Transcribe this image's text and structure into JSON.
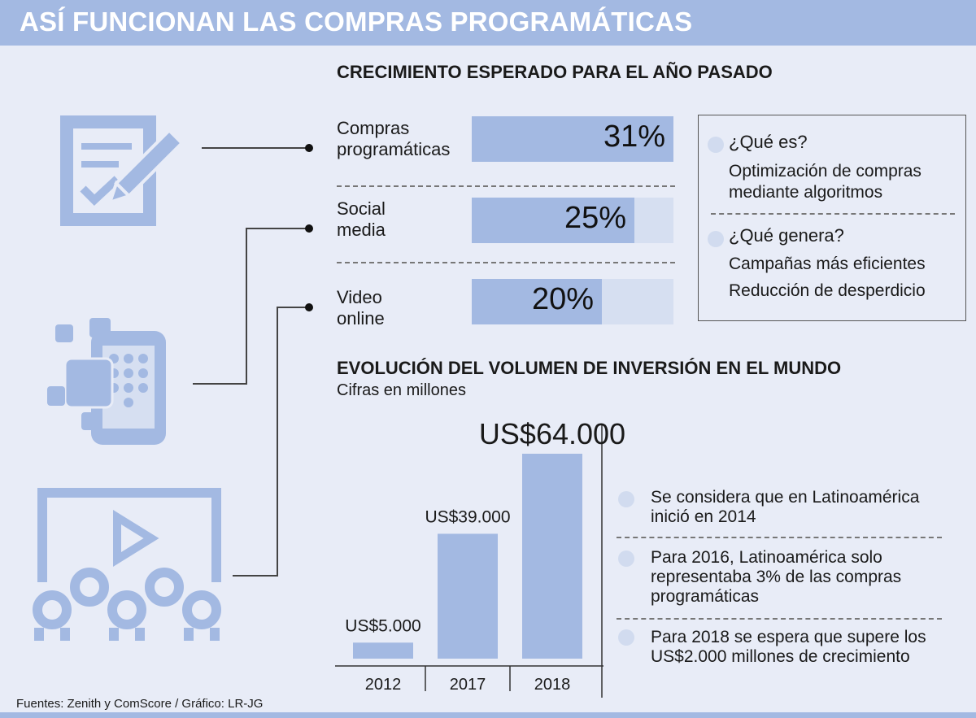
{
  "header": {
    "title": "ASÍ FUNCIONAN LAS COMPRAS PROGRAMÁTICAS"
  },
  "growth": {
    "title": "CRECIMIENTO ESPERADO PARA EL AÑO PASADO",
    "rows": [
      {
        "label_line1": "Compras",
        "label_line2": "programáticas",
        "value_label": "31%",
        "value": 31,
        "icon": "document-pencil-icon"
      },
      {
        "label_line1": "Social",
        "label_line2": "media",
        "value_label": "25%",
        "value": 25,
        "icon": "hand-phone-icon"
      },
      {
        "label_line1": "Video",
        "label_line2": "online",
        "value_label": "20%",
        "value": 20,
        "icon": "video-audience-icon"
      }
    ]
  },
  "info": {
    "q1": "¿Qué es?",
    "a1_line1": "Optimización de compras",
    "a1_line2": "mediante algoritmos",
    "q2": "¿Qué genera?",
    "a2_line1": "Campañas más eficientes",
    "a2_line2": "Reducción de desperdicio"
  },
  "investment": {
    "title": "EVOLUCIÓN DEL VOLUMEN DE INVERSIÓN EN EL MUNDO",
    "subtitle": "Cifras en millones"
  },
  "notes": [
    {
      "line1": "Se considera que en Latinoamérica",
      "line2": "inició en 2014",
      "line3": ""
    },
    {
      "line1": "Para 2016, Latinoamérica solo",
      "line2": "representaba 3% de las compras",
      "line3": "programáticas"
    },
    {
      "line1": "Para 2018 se espera que supere los",
      "line2": "US$2.000 millones de crecimiento",
      "line3": ""
    }
  ],
  "footer": {
    "text": "Fuentes: Zenith y ComScore  / Gráfico: LR-JG"
  },
  "colors": {
    "accent": "#a3b9e2",
    "track": "#d6dff1",
    "background": "#e8ecf7"
  },
  "chart_data": [
    {
      "type": "bar",
      "orientation": "horizontal",
      "title": "CRECIMIENTO ESPERADO PARA EL AÑO PASADO",
      "categories": [
        "Compras programáticas",
        "Social media",
        "Video online"
      ],
      "values": [
        31,
        25,
        20
      ],
      "unit": "%",
      "xlim": [
        0,
        31
      ]
    },
    {
      "type": "bar",
      "title": "EVOLUCIÓN DEL VOLUMEN DE INVERSIÓN EN EL MUNDO",
      "subtitle": "Cifras en millones",
      "categories": [
        "2012",
        "2017",
        "2018"
      ],
      "values": [
        5000,
        39000,
        64000
      ],
      "value_labels": [
        "US$5.000",
        "US$39.000",
        "US$64.000"
      ],
      "ylim": [
        0,
        64000
      ]
    }
  ]
}
